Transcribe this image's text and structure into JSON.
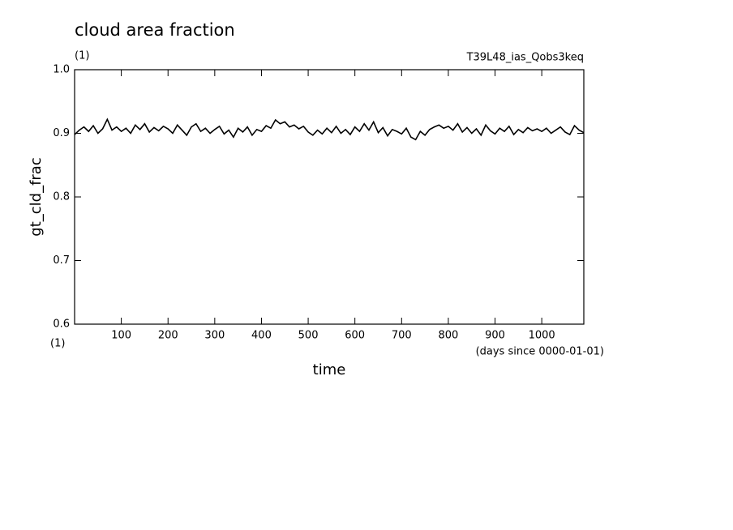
{
  "chart_data": {
    "type": "line",
    "title": "cloud area fraction",
    "y_units": "(1)",
    "annotation": "T39L48_ias_Qobs3keq",
    "ylabel": "gt_cld_frac",
    "xlabel": "time",
    "x_units": "(1)",
    "x_unit_note": "(days since 0000-01-01)",
    "x": [
      0,
      10,
      20,
      30,
      40,
      50,
      60,
      70,
      80,
      90,
      100,
      110,
      120,
      130,
      140,
      150,
      160,
      170,
      180,
      190,
      200,
      210,
      220,
      230,
      240,
      250,
      260,
      270,
      280,
      290,
      300,
      310,
      320,
      330,
      340,
      350,
      360,
      370,
      380,
      390,
      400,
      410,
      420,
      430,
      440,
      450,
      460,
      470,
      480,
      490,
      500,
      510,
      520,
      530,
      540,
      550,
      560,
      570,
      580,
      590,
      600,
      610,
      620,
      630,
      640,
      650,
      660,
      670,
      680,
      690,
      700,
      710,
      720,
      730,
      740,
      750,
      760,
      770,
      780,
      790,
      800,
      810,
      820,
      830,
      840,
      850,
      860,
      870,
      880,
      890,
      900,
      910,
      920,
      930,
      940,
      950,
      960,
      970,
      980,
      990,
      1000,
      1010,
      1020,
      1030,
      1040,
      1050,
      1060,
      1070,
      1080,
      1090
    ],
    "series": [
      {
        "name": "gt_cld_frac",
        "color": "#000000",
        "values": [
          0.898,
          0.905,
          0.91,
          0.903,
          0.912,
          0.9,
          0.907,
          0.922,
          0.905,
          0.91,
          0.903,
          0.908,
          0.9,
          0.913,
          0.906,
          0.915,
          0.902,
          0.909,
          0.904,
          0.911,
          0.907,
          0.9,
          0.913,
          0.905,
          0.897,
          0.91,
          0.915,
          0.903,
          0.908,
          0.9,
          0.906,
          0.911,
          0.899,
          0.905,
          0.894,
          0.908,
          0.902,
          0.91,
          0.897,
          0.906,
          0.903,
          0.912,
          0.908,
          0.921,
          0.915,
          0.918,
          0.91,
          0.913,
          0.907,
          0.911,
          0.902,
          0.897,
          0.905,
          0.899,
          0.908,
          0.901,
          0.911,
          0.9,
          0.906,
          0.898,
          0.91,
          0.903,
          0.915,
          0.905,
          0.918,
          0.901,
          0.909,
          0.896,
          0.906,
          0.903,
          0.899,
          0.908,
          0.894,
          0.89,
          0.903,
          0.897,
          0.906,
          0.91,
          0.913,
          0.908,
          0.911,
          0.905,
          0.915,
          0.902,
          0.909,
          0.9,
          0.907,
          0.897,
          0.913,
          0.904,
          0.899,
          0.908,
          0.903,
          0.911,
          0.898,
          0.906,
          0.901,
          0.909,
          0.904,
          0.907,
          0.903,
          0.908,
          0.9,
          0.905,
          0.91,
          0.902,
          0.898,
          0.912,
          0.905,
          0.901
        ]
      }
    ],
    "xlim": [
      0,
      1090
    ],
    "xticks": [
      100,
      200,
      300,
      400,
      500,
      600,
      700,
      800,
      900,
      1000
    ],
    "ylim": [
      0.6,
      1.0
    ],
    "yticks": [
      0.6,
      0.7,
      0.8,
      0.9,
      {
        "value": 1.0,
        "label": "1.0"
      }
    ],
    "grid": false
  }
}
